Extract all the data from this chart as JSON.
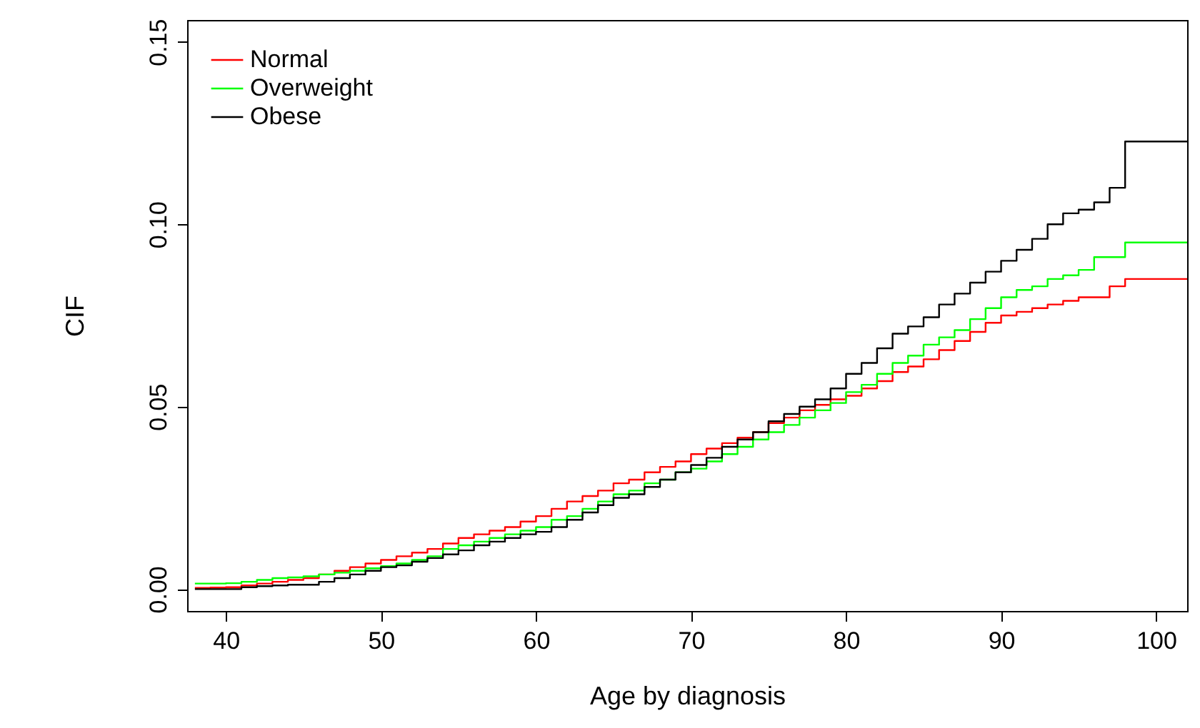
{
  "chart_data": {
    "type": "step",
    "xlabel": "Age by diagnosis",
    "ylabel": "CIF",
    "x": [
      38,
      39,
      40,
      41,
      42,
      43,
      44,
      45,
      46,
      47,
      48,
      49,
      50,
      51,
      52,
      53,
      54,
      55,
      56,
      57,
      58,
      59,
      60,
      61,
      62,
      63,
      64,
      65,
      66,
      67,
      68,
      69,
      70,
      71,
      72,
      73,
      74,
      75,
      76,
      77,
      78,
      79,
      80,
      81,
      82,
      83,
      84,
      85,
      86,
      87,
      88,
      89,
      90,
      91,
      92,
      93,
      94,
      95,
      96,
      97,
      98,
      102
    ],
    "series": [
      {
        "name": "Normal",
        "color": "#ff0000",
        "values": [
          0.0003,
          0.0004,
          0.0005,
          0.001,
          0.0015,
          0.002,
          0.0025,
          0.003,
          0.004,
          0.005,
          0.006,
          0.007,
          0.008,
          0.009,
          0.01,
          0.011,
          0.0125,
          0.014,
          0.015,
          0.016,
          0.017,
          0.0185,
          0.02,
          0.022,
          0.024,
          0.0255,
          0.027,
          0.029,
          0.03,
          0.032,
          0.0335,
          0.035,
          0.037,
          0.0385,
          0.04,
          0.0415,
          0.043,
          0.0455,
          0.047,
          0.049,
          0.0505,
          0.052,
          0.053,
          0.055,
          0.057,
          0.0595,
          0.061,
          0.063,
          0.0655,
          0.068,
          0.0705,
          0.073,
          0.075,
          0.076,
          0.077,
          0.078,
          0.079,
          0.08,
          0.08,
          0.083,
          0.085,
          0.085
        ]
      },
      {
        "name": "Overweight",
        "color": "#00ff00",
        "values": [
          0.0015,
          0.0015,
          0.0016,
          0.002,
          0.0025,
          0.003,
          0.0032,
          0.0035,
          0.004,
          0.0045,
          0.005,
          0.0057,
          0.0063,
          0.007,
          0.008,
          0.009,
          0.011,
          0.012,
          0.013,
          0.014,
          0.015,
          0.016,
          0.017,
          0.019,
          0.02,
          0.022,
          0.024,
          0.026,
          0.027,
          0.029,
          0.03,
          0.032,
          0.033,
          0.035,
          0.037,
          0.039,
          0.041,
          0.043,
          0.045,
          0.047,
          0.049,
          0.051,
          0.054,
          0.056,
          0.059,
          0.062,
          0.064,
          0.067,
          0.069,
          0.071,
          0.074,
          0.077,
          0.08,
          0.082,
          0.083,
          0.085,
          0.086,
          0.0875,
          0.091,
          0.091,
          0.095,
          0.095
        ]
      },
      {
        "name": "Obese",
        "color": "#000000",
        "values": [
          0,
          0,
          0,
          0.0005,
          0.0008,
          0.001,
          0.0012,
          0.0012,
          0.002,
          0.003,
          0.004,
          0.005,
          0.006,
          0.0065,
          0.0075,
          0.0085,
          0.0095,
          0.0106,
          0.012,
          0.013,
          0.014,
          0.015,
          0.0157,
          0.017,
          0.019,
          0.021,
          0.023,
          0.025,
          0.026,
          0.028,
          0.03,
          0.032,
          0.034,
          0.036,
          0.039,
          0.041,
          0.043,
          0.046,
          0.048,
          0.05,
          0.052,
          0.055,
          0.059,
          0.062,
          0.066,
          0.07,
          0.072,
          0.0745,
          0.078,
          0.081,
          0.084,
          0.087,
          0.09,
          0.093,
          0.096,
          0.1,
          0.103,
          0.104,
          0.106,
          0.11,
          0.1227,
          0.1227
        ]
      }
    ],
    "xlim": [
      37.5,
      102
    ],
    "xticks": [
      40,
      50,
      60,
      70,
      80,
      90,
      100
    ],
    "ylim": [
      -0.006,
      0.156
    ],
    "yticks": [
      {
        "value": 0,
        "label": "0.00"
      },
      {
        "value": 0.05,
        "label": "0.05"
      },
      {
        "value": 0.1,
        "label": "0.10"
      },
      {
        "value": 0.15,
        "label": "0.15"
      }
    ],
    "legend": "top left",
    "grid": false,
    "line_style": "solid",
    "marker": "none"
  }
}
